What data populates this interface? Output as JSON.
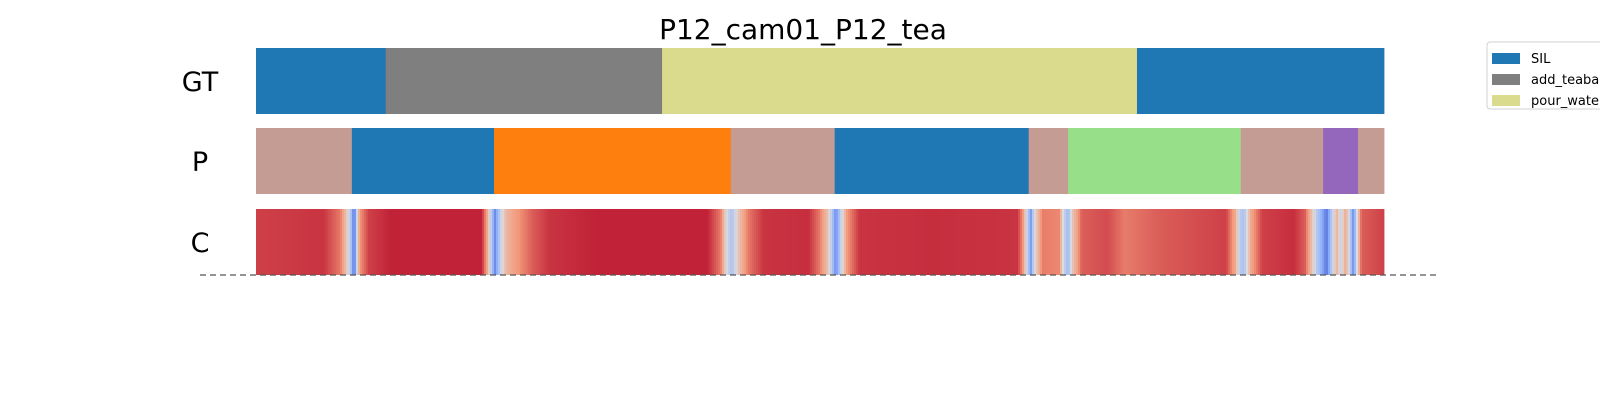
{
  "chart_data": {
    "type": "segmentation",
    "title": "P12_cam01_P12_tea",
    "x_range": [
      0,
      1
    ],
    "rows": [
      {
        "label": "GT",
        "segments": [
          {
            "start": 0.0,
            "end": 0.115,
            "class": "SIL",
            "color": "#1f77b4"
          },
          {
            "start": 0.115,
            "end": 0.36,
            "class": "add_teabag",
            "color": "#7f7f7f"
          },
          {
            "start": 0.36,
            "end": 0.781,
            "class": "pour_water",
            "color": "#dbdb8d"
          },
          {
            "start": 0.781,
            "end": 1.0,
            "class": "SIL",
            "color": "#1f77b4"
          }
        ]
      },
      {
        "label": "P",
        "segments": [
          {
            "start": 0.0,
            "end": 0.085,
            "color": "#c49c94"
          },
          {
            "start": 0.085,
            "end": 0.211,
            "color": "#1f77b4"
          },
          {
            "start": 0.211,
            "end": 0.421,
            "color": "#ff7f0e"
          },
          {
            "start": 0.421,
            "end": 0.513,
            "color": "#c49c94"
          },
          {
            "start": 0.513,
            "end": 0.685,
            "color": "#1f77b4"
          },
          {
            "start": 0.685,
            "end": 0.72,
            "color": "#c49c94"
          },
          {
            "start": 0.72,
            "end": 0.873,
            "color": "#98df8a"
          },
          {
            "start": 0.873,
            "end": 0.946,
            "color": "#c49c94"
          },
          {
            "start": 0.946,
            "end": 0.977,
            "color": "#9467bd"
          },
          {
            "start": 0.977,
            "end": 1.0,
            "color": "#c49c94"
          }
        ]
      },
      {
        "label": "C",
        "colormap": "coolwarm",
        "confidence_points": [
          [
            0.0,
            0.9
          ],
          [
            0.06,
            0.92
          ],
          [
            0.075,
            0.8
          ],
          [
            0.08,
            0.6
          ],
          [
            0.085,
            0.3
          ],
          [
            0.087,
            0.05
          ],
          [
            0.089,
            0.4
          ],
          [
            0.092,
            0.75
          ],
          [
            0.1,
            0.9
          ],
          [
            0.12,
            0.95
          ],
          [
            0.2,
            0.95
          ],
          [
            0.205,
            0.7
          ],
          [
            0.209,
            0.35
          ],
          [
            0.212,
            0.15
          ],
          [
            0.216,
            0.4
          ],
          [
            0.222,
            0.65
          ],
          [
            0.232,
            0.75
          ],
          [
            0.245,
            0.85
          ],
          [
            0.26,
            0.92
          ],
          [
            0.3,
            0.95
          ],
          [
            0.4,
            0.95
          ],
          [
            0.412,
            0.8
          ],
          [
            0.418,
            0.45
          ],
          [
            0.422,
            0.35
          ],
          [
            0.428,
            0.6
          ],
          [
            0.436,
            0.8
          ],
          [
            0.45,
            0.92
          ],
          [
            0.49,
            0.93
          ],
          [
            0.5,
            0.8
          ],
          [
            0.507,
            0.6
          ],
          [
            0.511,
            0.35
          ],
          [
            0.514,
            0.15
          ],
          [
            0.518,
            0.4
          ],
          [
            0.524,
            0.75
          ],
          [
            0.535,
            0.92
          ],
          [
            0.6,
            0.93
          ],
          [
            0.675,
            0.92
          ],
          [
            0.68,
            0.75
          ],
          [
            0.684,
            0.4
          ],
          [
            0.687,
            0.2
          ],
          [
            0.69,
            0.5
          ],
          [
            0.697,
            0.8
          ],
          [
            0.712,
            0.78
          ],
          [
            0.716,
            0.45
          ],
          [
            0.72,
            0.3
          ],
          [
            0.724,
            0.6
          ],
          [
            0.732,
            0.85
          ],
          [
            0.755,
            0.88
          ],
          [
            0.77,
            0.8
          ],
          [
            0.8,
            0.85
          ],
          [
            0.86,
            0.9
          ],
          [
            0.868,
            0.7
          ],
          [
            0.872,
            0.4
          ],
          [
            0.876,
            0.35
          ],
          [
            0.882,
            0.7
          ],
          [
            0.892,
            0.9
          ],
          [
            0.92,
            0.93
          ],
          [
            0.93,
            0.85
          ],
          [
            0.935,
            0.65
          ],
          [
            0.94,
            0.4
          ],
          [
            0.945,
            0.25
          ],
          [
            0.949,
            0.1
          ],
          [
            0.953,
            0.35
          ],
          [
            0.958,
            0.65
          ],
          [
            0.962,
            0.45
          ],
          [
            0.966,
            0.7
          ],
          [
            0.97,
            0.4
          ],
          [
            0.973,
            0.15
          ],
          [
            0.976,
            0.5
          ],
          [
            0.98,
            0.85
          ],
          [
            1.0,
            0.9
          ]
        ]
      }
    ],
    "legend": {
      "position": "top-right",
      "entries": [
        {
          "label": "SIL",
          "color": "#1f77b4"
        },
        {
          "label": "add_teaba",
          "color": "#7f7f7f"
        },
        {
          "label": "pour_wate",
          "color": "#dbdb8d"
        }
      ]
    }
  }
}
